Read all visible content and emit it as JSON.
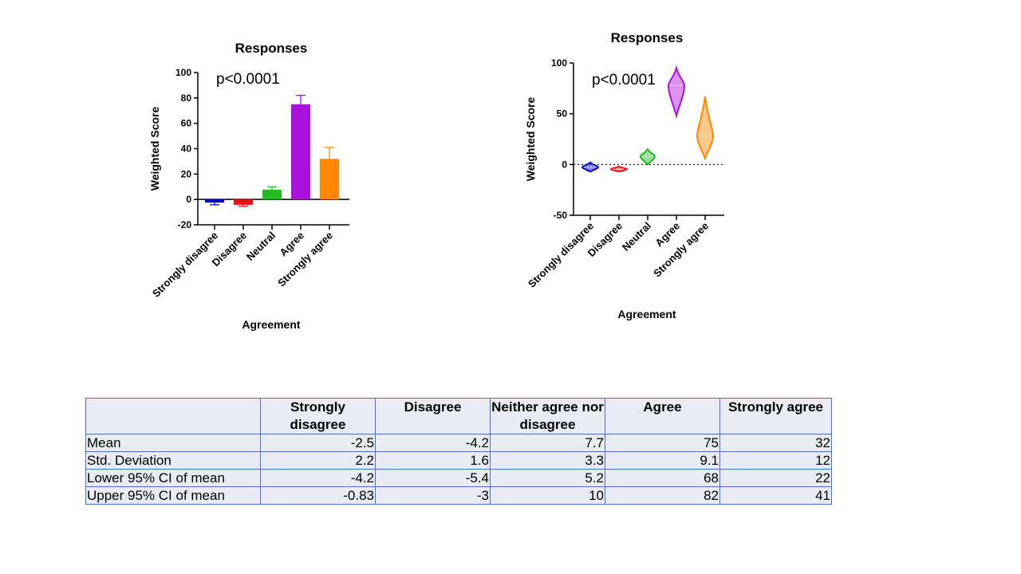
{
  "chart_data": [
    {
      "type": "bar",
      "title": "Responses",
      "xlabel": "Agreement",
      "ylabel": "Weighted Score",
      "annotation": "p<0.0001",
      "categories": [
        "Strongly disagree",
        "Disagree",
        "Neutral",
        "Agree",
        "Strongly agree"
      ],
      "values": [
        -2.5,
        -4.2,
        7.7,
        75,
        32
      ],
      "error_upper": [
        -0.83,
        -3,
        10,
        82,
        41
      ],
      "error_lower": [
        -4.2,
        -5.4,
        5.2,
        68,
        22
      ],
      "ylim": [
        -20,
        100
      ],
      "yticks": [
        -20,
        0,
        20,
        40,
        60,
        80,
        100
      ],
      "colors": [
        "#0000cc",
        "#ee1111",
        "#22bb22",
        "#aa11dd",
        "#ff8800"
      ]
    },
    {
      "type": "violin",
      "title": "Responses",
      "xlabel": "Agreement",
      "ylabel": "Weighted Score",
      "annotation": "p<0.0001",
      "categories": [
        "Strongly disagree",
        "Disagree",
        "Neutral",
        "Agree",
        "Strongly agree"
      ],
      "median": [
        -2.5,
        -4.5,
        8,
        78,
        28
      ],
      "min": [
        -7,
        -7,
        0,
        48,
        6
      ],
      "max": [
        2,
        -2,
        15,
        95,
        67
      ],
      "ylim": [
        -50,
        100
      ],
      "yticks": [
        -50,
        0,
        50,
        100
      ],
      "zero_line": "dotted",
      "colors": [
        "#0000cc",
        "#ee1111",
        "#22bb22",
        "#aa11dd",
        "#ff8800"
      ]
    }
  ],
  "table": {
    "headers": [
      "",
      "Strongly disagree",
      "Disagree",
      "Neither agree nor disagree",
      "Agree",
      "Strongly agree"
    ],
    "rows": [
      {
        "label": "Mean",
        "values": [
          "-2.5",
          "-4.2",
          "7.7",
          "75",
          "32"
        ]
      },
      {
        "label": "Std. Deviation",
        "values": [
          "2.2",
          "1.6",
          "3.3",
          "9.1",
          "12"
        ]
      },
      {
        "label": "Lower 95% CI of mean",
        "values": [
          "-4.2",
          "-5.4",
          "5.2",
          "68",
          "22"
        ]
      },
      {
        "label": "Upper 95% CI of mean",
        "values": [
          "-0.83",
          "-3",
          "10",
          "82",
          "41"
        ]
      }
    ]
  }
}
